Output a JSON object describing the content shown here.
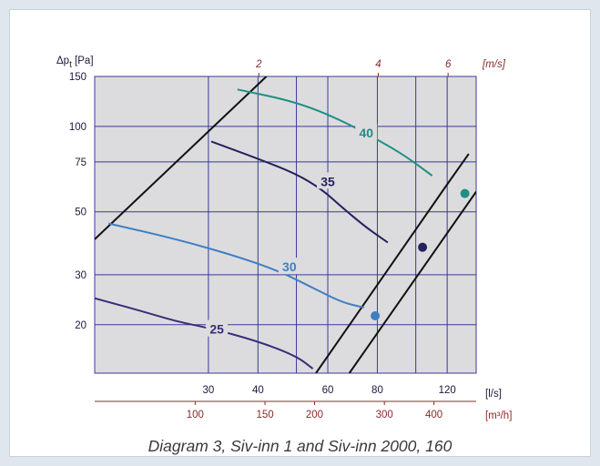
{
  "caption": "Diagram 3, Siv-inn 1 and Siv-inn 2000, 160",
  "chart_data": {
    "type": "line",
    "title": "",
    "y_axis": {
      "label_main": "Δp",
      "label_sub": "t",
      "label_unit": " [Pa]",
      "scale": "log",
      "range": [
        13.5,
        150
      ],
      "ticks": [
        20,
        30,
        50,
        75,
        100,
        150
      ]
    },
    "x_axis": {
      "unit": "[l/s]",
      "scale": "log",
      "range": [
        15.5,
        142
      ],
      "ticks": [
        30,
        40,
        60,
        80,
        120
      ]
    },
    "x_axis_secondary": {
      "unit": "[m³/h]",
      "ticks": [
        100,
        150,
        200,
        300,
        400
      ]
    },
    "top_axis": {
      "unit": "[m/s]",
      "ticks": [
        2,
        4,
        6
      ]
    },
    "grid": true,
    "colors": {
      "plot_bg": "#dcdcde",
      "grid": "#3a3a9a",
      "velocity_axis": "#8b2a2a"
    },
    "sound_curves": [
      {
        "name": "25",
        "color": "#3b2c7a",
        "points": [
          [
            15.5,
            24.8
          ],
          [
            20,
            22.5
          ],
          [
            25,
            20.5
          ],
          [
            30,
            19.5
          ],
          [
            40,
            17.5
          ],
          [
            50,
            15.5
          ],
          [
            55,
            14
          ]
        ],
        "label_at": [
          31.5,
          19.3
        ]
      },
      {
        "name": "30",
        "color": "#3f7fc4",
        "points": [
          [
            16.8,
            45.5
          ],
          [
            25,
            40
          ],
          [
            35,
            35
          ],
          [
            45,
            31
          ],
          [
            55,
            27
          ],
          [
            65,
            24
          ],
          [
            74,
            23
          ]
        ],
        "label_at": [
          48,
          32
        ]
      },
      {
        "name": "35",
        "color": "#24225e",
        "points": [
          [
            30.5,
            88.5
          ],
          [
            40,
            77
          ],
          [
            50,
            68
          ],
          [
            58,
            60
          ],
          [
            65,
            52
          ],
          [
            75,
            44
          ],
          [
            85,
            39
          ]
        ],
        "label_at": [
          60,
          64
        ]
      },
      {
        "name": "40",
        "color": "#1f8f84",
        "points": [
          [
            35.5,
            135
          ],
          [
            50,
            122
          ],
          [
            65,
            105
          ],
          [
            80,
            90
          ],
          [
            95,
            78
          ],
          [
            110,
            67
          ]
        ],
        "label_at": [
          75,
          95
        ]
      }
    ],
    "system_lines": [
      {
        "points": [
          [
            15.5,
            40
          ],
          [
            42,
            150
          ]
        ]
      },
      {
        "points": [
          [
            56,
            13.5
          ],
          [
            120,
            62.5
          ],
          [
            136,
            80
          ]
        ]
      },
      {
        "points": [
          [
            68,
            13.5
          ],
          [
            142,
            58.9
          ]
        ]
      }
    ],
    "operating_points": [
      {
        "label": "",
        "x": 79,
        "y": 21.5,
        "color": "#3f7fc4"
      },
      {
        "label": "",
        "x": 104,
        "y": 37.5,
        "color": "#24225e"
      },
      {
        "label": "",
        "x": 133,
        "y": 58,
        "color": "#1f8f84"
      }
    ]
  }
}
